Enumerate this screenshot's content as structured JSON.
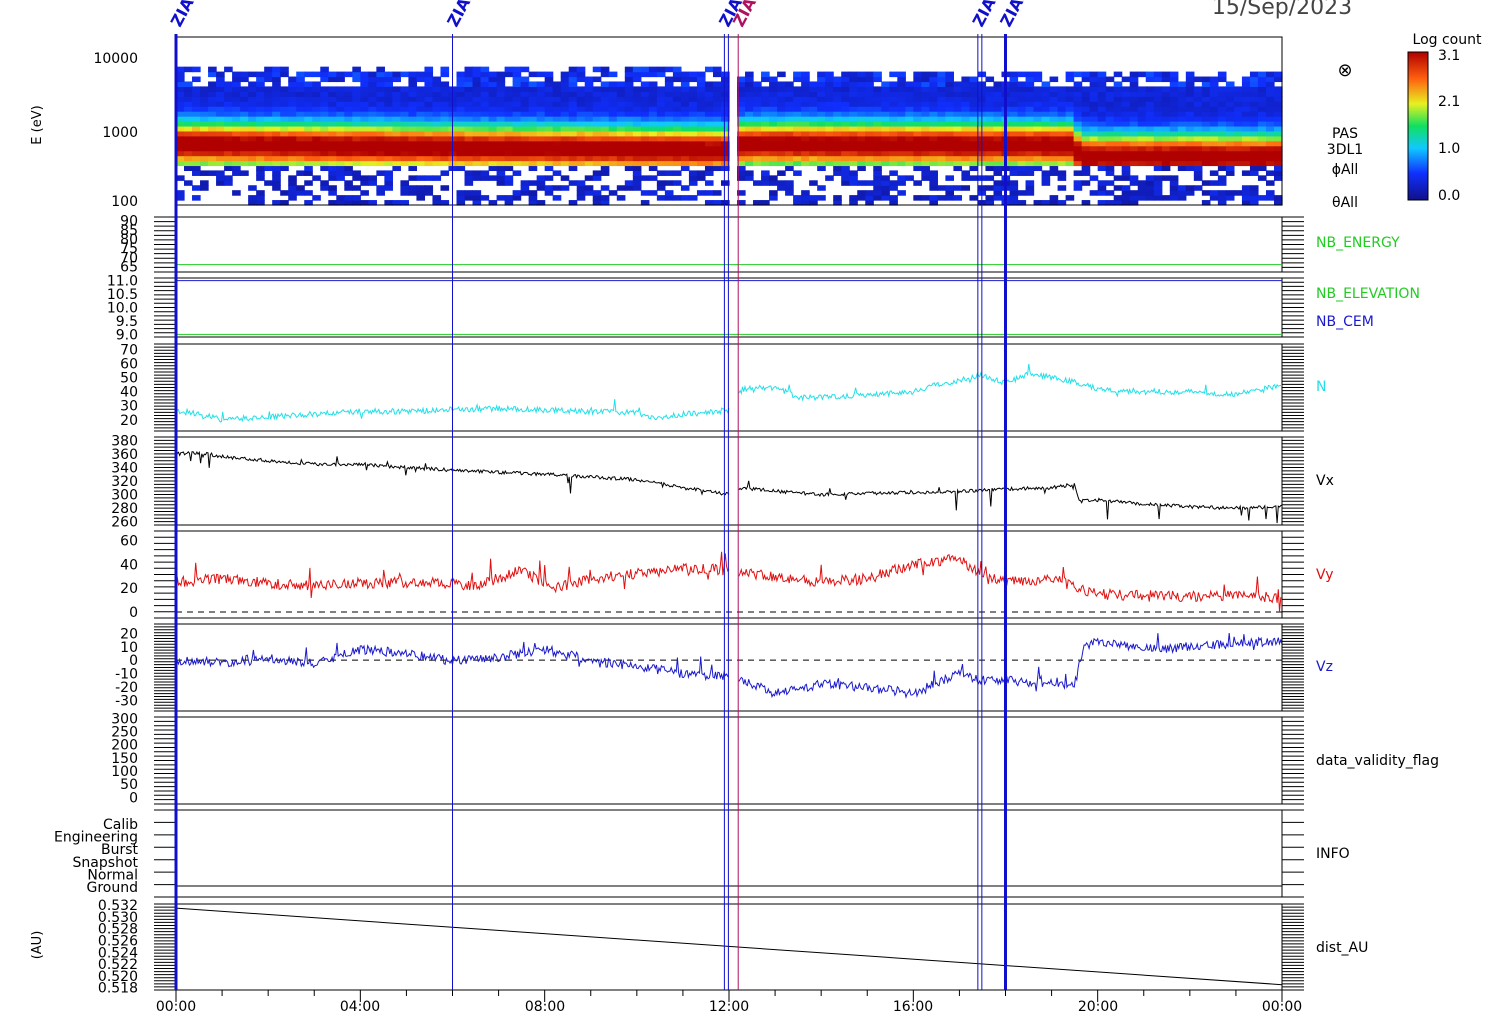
{
  "date_label": "15/Sep/2023",
  "x_ticks": [
    "00:00",
    "04:00",
    "08:00",
    "12:00",
    "16:00",
    "20:00",
    "00:00"
  ],
  "event_markers": {
    "labels": [
      "ZIAS",
      "ZIAS",
      "ZIAS",
      "ZIAS",
      "ZIAS",
      "ZIAS"
    ],
    "times_hours": [
      0.0,
      6.0,
      11.9,
      12.2,
      17.4,
      18.0
    ],
    "colors": [
      "#1010cc",
      "#1010cc",
      "#1010cc",
      "#b01060",
      "#1010cc",
      "#1010cc"
    ]
  },
  "colorbar": {
    "title": "Log count",
    "tick_labels": [
      "3.1",
      "2.1",
      "1.0",
      "0.0"
    ],
    "range": [
      0.0,
      3.1
    ]
  },
  "panels": {
    "spectrogram": {
      "ylabel": "E (eV)",
      "tick_labels": [
        "10000",
        "1000",
        "100"
      ],
      "ylim": [
        100,
        15000
      ],
      "scale": "log",
      "right_labels": [
        "PAS",
        "3DL1",
        "ϕAll",
        "θAll"
      ],
      "symbol": "⊗"
    },
    "nb_energy": {
      "label": "NB_ENERGY",
      "label_color": "#22cc22",
      "tick_labels": [
        "90",
        "85",
        "80",
        "75",
        "70",
        "65"
      ],
      "ylim": [
        62,
        92
      ],
      "line_value": 66
    },
    "nb_elevation": {
      "labels": [
        "NB_ELEVATION",
        "NB_CEM"
      ],
      "label_colors": [
        "#22cc22",
        "#1a1acc"
      ],
      "tick_labels": [
        "11.0",
        "10.5",
        "10.0",
        "9.5",
        "9.0"
      ],
      "ylim": [
        8.9,
        11.1
      ],
      "elevation_value": 9.0,
      "cem_value": 11.0
    },
    "n": {
      "label": "N",
      "color": "#22e0e8",
      "tick_labels": [
        "70",
        "60",
        "50",
        "40",
        "30",
        "20"
      ],
      "ylim": [
        12,
        74
      ]
    },
    "vx": {
      "label": "Vx",
      "color": "#000000",
      "tick_labels": [
        "380",
        "360",
        "340",
        "320",
        "300",
        "280",
        "260"
      ],
      "ylim": [
        255,
        385
      ]
    },
    "vy": {
      "label": "Vy",
      "color": "#e01010",
      "tick_labels": [
        "60",
        "40",
        "20",
        "0"
      ],
      "ylim": [
        -5,
        68
      ]
    },
    "vz": {
      "label": "Vz",
      "color": "#1a1acc",
      "tick_labels": [
        "20",
        "10",
        "0",
        "-10",
        "-20",
        "-30"
      ],
      "ylim": [
        -38,
        27
      ]
    },
    "validity": {
      "label": "data_validity_flag",
      "tick_labels": [
        "300",
        "250",
        "200",
        "150",
        "100",
        "50",
        "0"
      ],
      "ylim": [
        -25,
        305
      ]
    },
    "info": {
      "label": "INFO",
      "tick_labels": [
        "Calib",
        "Engineering",
        "Burst",
        "Snapshot",
        "Normal",
        "Ground"
      ]
    },
    "dist": {
      "label": "dist_AU",
      "ylabel": "(AU)",
      "tick_labels": [
        "0.532",
        "0.530",
        "0.528",
        "0.526",
        "0.524",
        "0.522",
        "0.520",
        "0.518"
      ],
      "ylim": [
        0.5176,
        0.5322
      ],
      "start_value": 0.5315,
      "end_value": 0.5185
    }
  },
  "chart_data": [
    {
      "type": "heatmap",
      "ylabel": "E (eV)",
      "y_scale": "log",
      "ylim": [
        100,
        15000
      ],
      "x_range_hours": [
        0,
        24
      ],
      "peak_energy_ev": [
        [
          0,
          620
        ],
        [
          6,
          560
        ],
        [
          12,
          520
        ],
        [
          12.3,
          620
        ],
        [
          19.5,
          600
        ],
        [
          19.6,
          430
        ],
        [
          24,
          430
        ]
      ],
      "colorbar_label": "Log count",
      "colorbar_range": [
        0.0,
        3.1
      ]
    },
    {
      "type": "line",
      "series": [
        {
          "name": "NB_ENERGY",
          "x": [
            0,
            24
          ],
          "y": [
            66,
            66
          ]
        }
      ],
      "ylim": [
        62,
        92
      ]
    },
    {
      "type": "line",
      "series": [
        {
          "name": "NB_ELEVATION",
          "x": [
            0,
            24
          ],
          "y": [
            9.0,
            9.0
          ]
        },
        {
          "name": "NB_CEM",
          "x": [
            0,
            24
          ],
          "y": [
            11.0,
            11.0
          ]
        }
      ],
      "ylim": [
        8.9,
        11.1
      ]
    },
    {
      "type": "line",
      "series": [
        {
          "name": "N",
          "x": [
            0,
            0.5,
            1,
            1.5,
            2,
            3,
            4,
            5,
            6,
            7,
            8,
            9,
            10,
            10.5,
            11,
            11.5,
            12,
            12.3,
            13,
            13.5,
            14,
            15,
            16,
            16.5,
            17,
            17.5,
            18,
            18.5,
            19,
            19.5,
            20,
            21,
            22,
            23,
            24
          ],
          "y": [
            26,
            24,
            20,
            21,
            22,
            24,
            26,
            26,
            27,
            28,
            27,
            26,
            25,
            21,
            24,
            25,
            27,
            42,
            43,
            36,
            36,
            38,
            40,
            45,
            48,
            52,
            46,
            53,
            50,
            47,
            42,
            40,
            40,
            38,
            45
          ]
        }
      ],
      "ylim": [
        12,
        74
      ]
    },
    {
      "type": "line",
      "series": [
        {
          "name": "Vx",
          "x": [
            0,
            0.5,
            1,
            2,
            3,
            4,
            5,
            6,
            7,
            8,
            9,
            10,
            11,
            12,
            12.3,
            13,
            14,
            15,
            16,
            17,
            18,
            19,
            19.5,
            19.6,
            20,
            21,
            22,
            23,
            24
          ],
          "y": [
            360,
            362,
            356,
            350,
            345,
            345,
            340,
            336,
            333,
            330,
            326,
            322,
            310,
            300,
            310,
            305,
            300,
            302,
            303,
            305,
            308,
            310,
            315,
            290,
            292,
            286,
            282,
            280,
            282
          ]
        }
      ],
      "ylim": [
        255,
        385
      ]
    },
    {
      "type": "line",
      "series": [
        {
          "name": "Vy",
          "x": [
            0,
            1,
            2,
            3,
            4,
            5,
            6,
            6.5,
            7.5,
            8.2,
            9,
            10,
            11,
            12,
            13,
            14,
            15,
            16,
            17,
            17.5,
            18,
            19,
            20,
            21,
            22,
            23,
            24
          ],
          "y": [
            25,
            28,
            24,
            22,
            24,
            25,
            24,
            22,
            35,
            20,
            28,
            32,
            37,
            35,
            30,
            25,
            28,
            40,
            45,
            30,
            25,
            28,
            15,
            14,
            13,
            14,
            12
          ]
        }
      ],
      "ylim": [
        -5,
        68
      ]
    },
    {
      "type": "line",
      "series": [
        {
          "name": "Vz",
          "x": [
            0,
            1,
            2,
            3,
            4,
            5,
            6,
            7,
            8,
            9,
            10,
            11,
            12,
            12.3,
            13,
            14,
            15,
            16,
            17,
            17.5,
            18,
            19,
            19.5,
            19.7,
            20,
            21,
            22,
            23,
            24
          ],
          "y": [
            0,
            -2,
            2,
            -3,
            8,
            5,
            0,
            2,
            8,
            0,
            -5,
            -10,
            -12,
            -15,
            -25,
            -18,
            -20,
            -25,
            -10,
            -15,
            -15,
            -18,
            -18,
            10,
            15,
            8,
            10,
            12,
            15
          ]
        }
      ],
      "ylim": [
        -38,
        27
      ]
    },
    {
      "type": "line",
      "series": [
        {
          "name": "dist_AU",
          "x": [
            0,
            24
          ],
          "y": [
            0.5315,
            0.5185
          ]
        }
      ],
      "ylabel": "(AU)",
      "ylim": [
        0.5176,
        0.5322
      ]
    }
  ]
}
